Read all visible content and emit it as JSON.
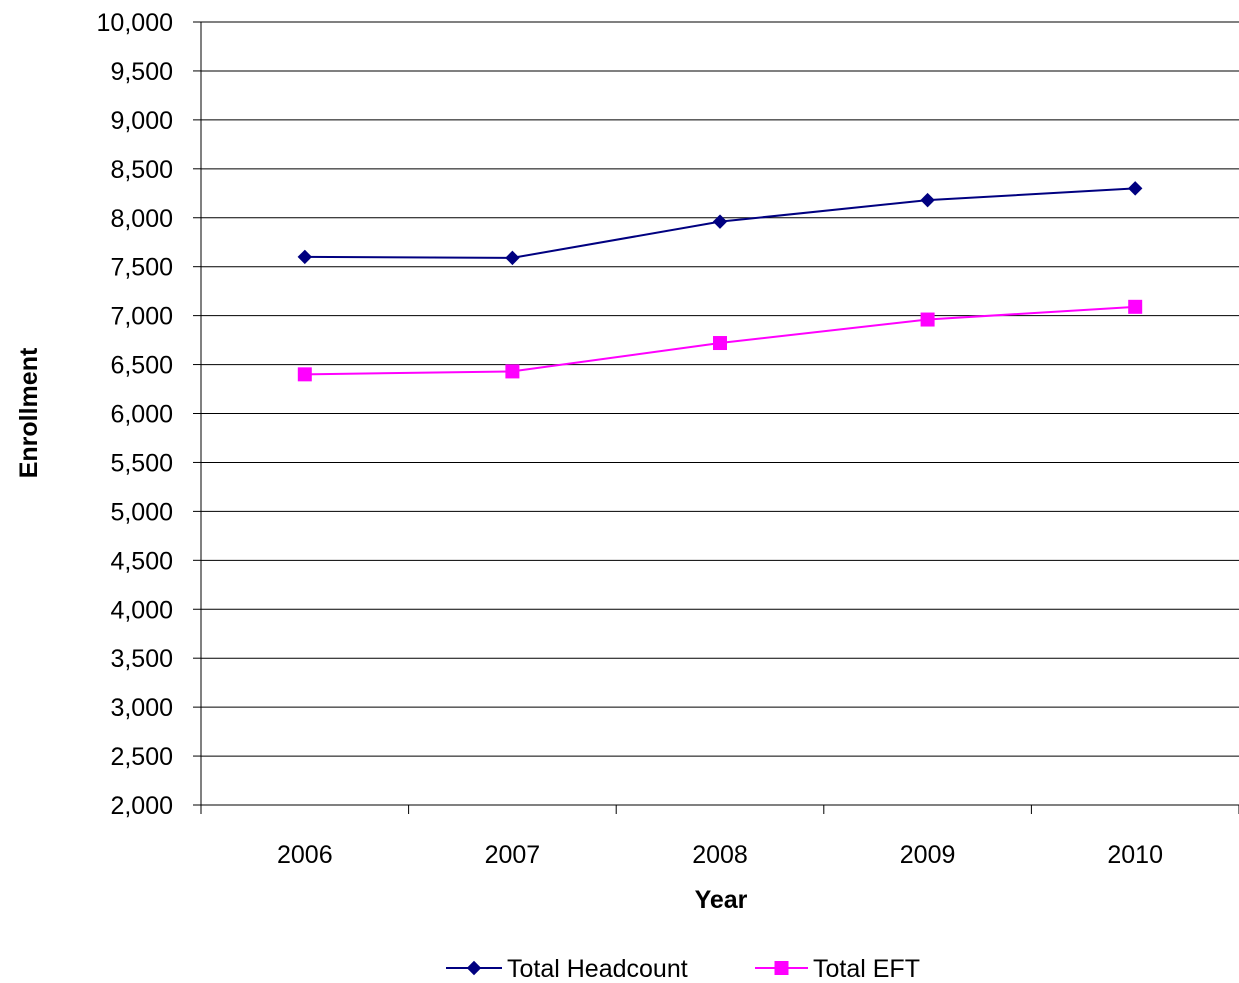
{
  "chart_data": {
    "type": "line",
    "title": "",
    "xlabel": "Year",
    "ylabel": "Enrollment",
    "categories": [
      "2006",
      "2007",
      "2008",
      "2009",
      "2010"
    ],
    "ylim": [
      2000,
      10000
    ],
    "ytick_step": 500,
    "ytick_labels": [
      "2,000",
      "2,500",
      "3,000",
      "3,500",
      "4,000",
      "4,500",
      "5,000",
      "5,500",
      "6,000",
      "6,500",
      "7,000",
      "7,500",
      "8,000",
      "8,500",
      "9,000",
      "9,500",
      "10,000"
    ],
    "grid": "horizontal",
    "legend_position": "bottom",
    "series": [
      {
        "name": "Total Headcount",
        "color": "#000080",
        "marker": "diamond",
        "values": [
          7600,
          7590,
          7960,
          8180,
          8300
        ]
      },
      {
        "name": "Total EFT",
        "color": "#ff00ff",
        "marker": "square",
        "values": [
          6400,
          6430,
          6720,
          6960,
          7090
        ]
      }
    ]
  }
}
